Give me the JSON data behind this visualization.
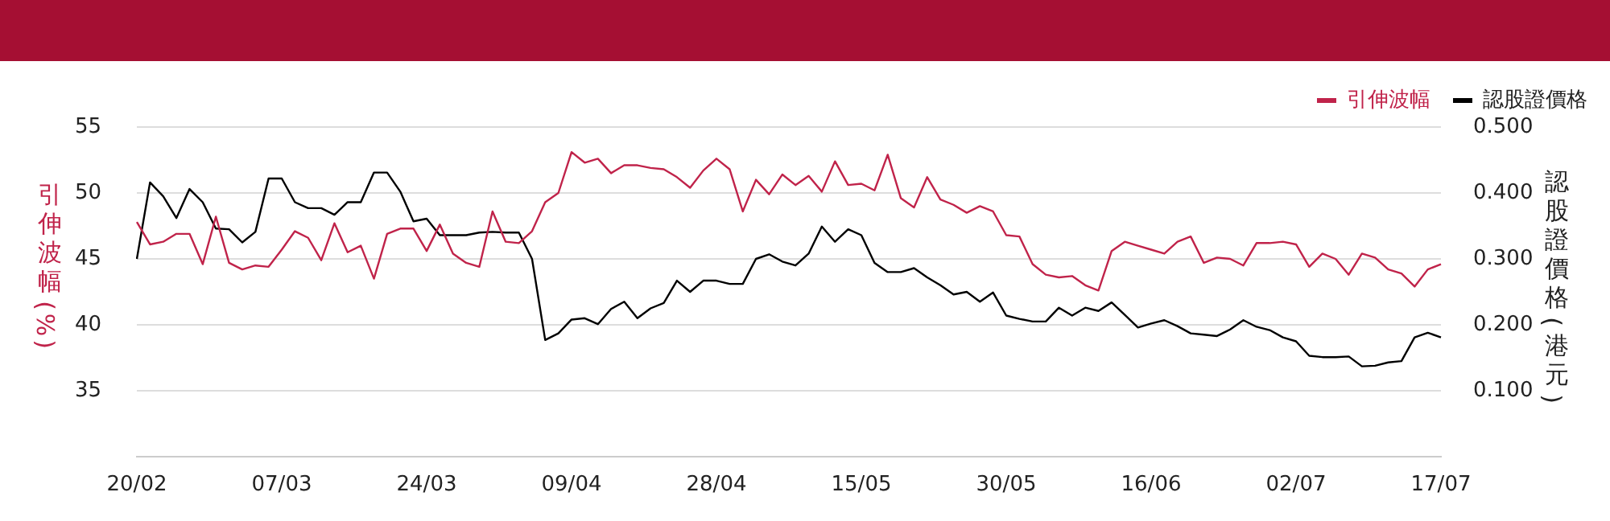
{
  "chart_data": {
    "type": "line",
    "ylabel": "引伸波幅(%)",
    "y2label": "認股證價格(港元)",
    "categories": [
      "20/02",
      null,
      null,
      null,
      null,
      null,
      null,
      null,
      null,
      null,
      null,
      "07/03",
      null,
      null,
      null,
      null,
      null,
      null,
      null,
      null,
      null,
      null,
      "24/03",
      null,
      null,
      null,
      null,
      null,
      null,
      null,
      null,
      null,
      null,
      "09/04",
      null,
      null,
      null,
      null,
      null,
      null,
      null,
      null,
      null,
      null,
      "28/04",
      null,
      null,
      null,
      null,
      null,
      null,
      null,
      null,
      null,
      null,
      "15/05",
      null,
      null,
      null,
      null,
      null,
      null,
      null,
      null,
      null,
      null,
      "30/05",
      null,
      null,
      null,
      null,
      null,
      null,
      null,
      null,
      null,
      null,
      "16/06",
      null,
      null,
      null,
      null,
      null,
      null,
      null,
      null,
      null,
      null,
      "02/07",
      null,
      null,
      null,
      null,
      null,
      null,
      null,
      null,
      null,
      null,
      "17/07"
    ],
    "series": [
      {
        "name": "引伸波幅",
        "color": "#c0234a",
        "values": [
          47.8,
          46.1,
          46.3,
          46.9,
          46.9,
          44.6,
          48.2,
          44.7,
          44.2,
          44.5,
          44.4,
          45.7,
          47.1,
          46.6,
          44.9,
          47.7,
          45.5,
          46.0,
          43.5,
          46.9,
          47.3,
          47.3,
          45.6,
          47.6,
          45.4,
          44.7,
          44.4,
          48.6,
          46.3,
          46.2,
          47.1,
          49.3,
          50.0,
          53.1,
          52.3,
          52.6,
          51.5,
          52.1,
          52.1,
          51.9,
          51.8,
          51.2,
          50.4,
          51.7,
          52.6,
          51.8,
          48.6,
          51.0,
          49.9,
          51.4,
          50.6,
          51.3,
          50.1,
          52.4,
          50.6,
          50.7,
          50.2,
          52.9,
          49.6,
          48.9,
          51.2,
          49.5,
          49.1,
          48.5,
          49.0,
          48.6,
          46.8,
          46.7,
          44.6,
          43.8,
          43.6,
          43.7,
          43.0,
          42.6,
          45.6,
          46.3,
          46.0,
          45.7,
          45.4,
          46.3,
          46.7,
          44.7,
          45.1,
          45.0,
          44.5,
          46.2,
          46.2,
          46.3,
          46.1,
          44.4,
          45.4,
          45.0,
          43.8,
          45.4,
          45.1,
          44.2,
          43.9,
          42.9,
          44.2,
          44.6
        ]
      },
      {
        "name": "認股證價格",
        "color": "#000000",
        "axis": "y2",
        "values": [
          0.3,
          0.416,
          0.395,
          0.362,
          0.406,
          0.386,
          0.346,
          0.345,
          0.325,
          0.341,
          0.422,
          0.422,
          0.386,
          0.377,
          0.377,
          0.367,
          0.386,
          0.386,
          0.431,
          0.431,
          0.402,
          0.357,
          0.361,
          0.336,
          0.336,
          0.336,
          0.34,
          0.341,
          0.34,
          0.34,
          0.3,
          0.177,
          0.187,
          0.208,
          0.21,
          0.201,
          0.224,
          0.235,
          0.21,
          0.225,
          0.233,
          0.267,
          0.25,
          0.267,
          0.267,
          0.262,
          0.262,
          0.3,
          0.307,
          0.296,
          0.29,
          0.308,
          0.349,
          0.326,
          0.345,
          0.336,
          0.294,
          0.28,
          0.28,
          0.286,
          0.272,
          0.26,
          0.246,
          0.25,
          0.235,
          0.249,
          0.214,
          0.209,
          0.205,
          0.205,
          0.226,
          0.214,
          0.226,
          0.221,
          0.234,
          0.215,
          0.196,
          0.202,
          0.207,
          0.198,
          0.187,
          0.185,
          0.183,
          0.193,
          0.207,
          0.197,
          0.192,
          0.181,
          0.175,
          0.153,
          0.151,
          0.151,
          0.152,
          0.137,
          0.138,
          0.143,
          0.145,
          0.181,
          0.188,
          0.181
        ]
      }
    ],
    "ylim": [
      30,
      55
    ],
    "yticks": [
      35,
      40,
      45,
      50,
      55
    ],
    "y2lim": [
      0,
      0.5
    ],
    "y2ticks": [
      {
        "value": 0.1,
        "label": "0.100"
      },
      {
        "value": 0.2,
        "label": "0.200"
      },
      {
        "value": 0.3,
        "label": "0.300"
      },
      {
        "value": 0.4,
        "label": "0.400"
      },
      {
        "value": 0.5,
        "label": "0.500"
      }
    ],
    "grid": "y",
    "legend": "top right",
    "marker": "none",
    "line_style": "solid"
  }
}
